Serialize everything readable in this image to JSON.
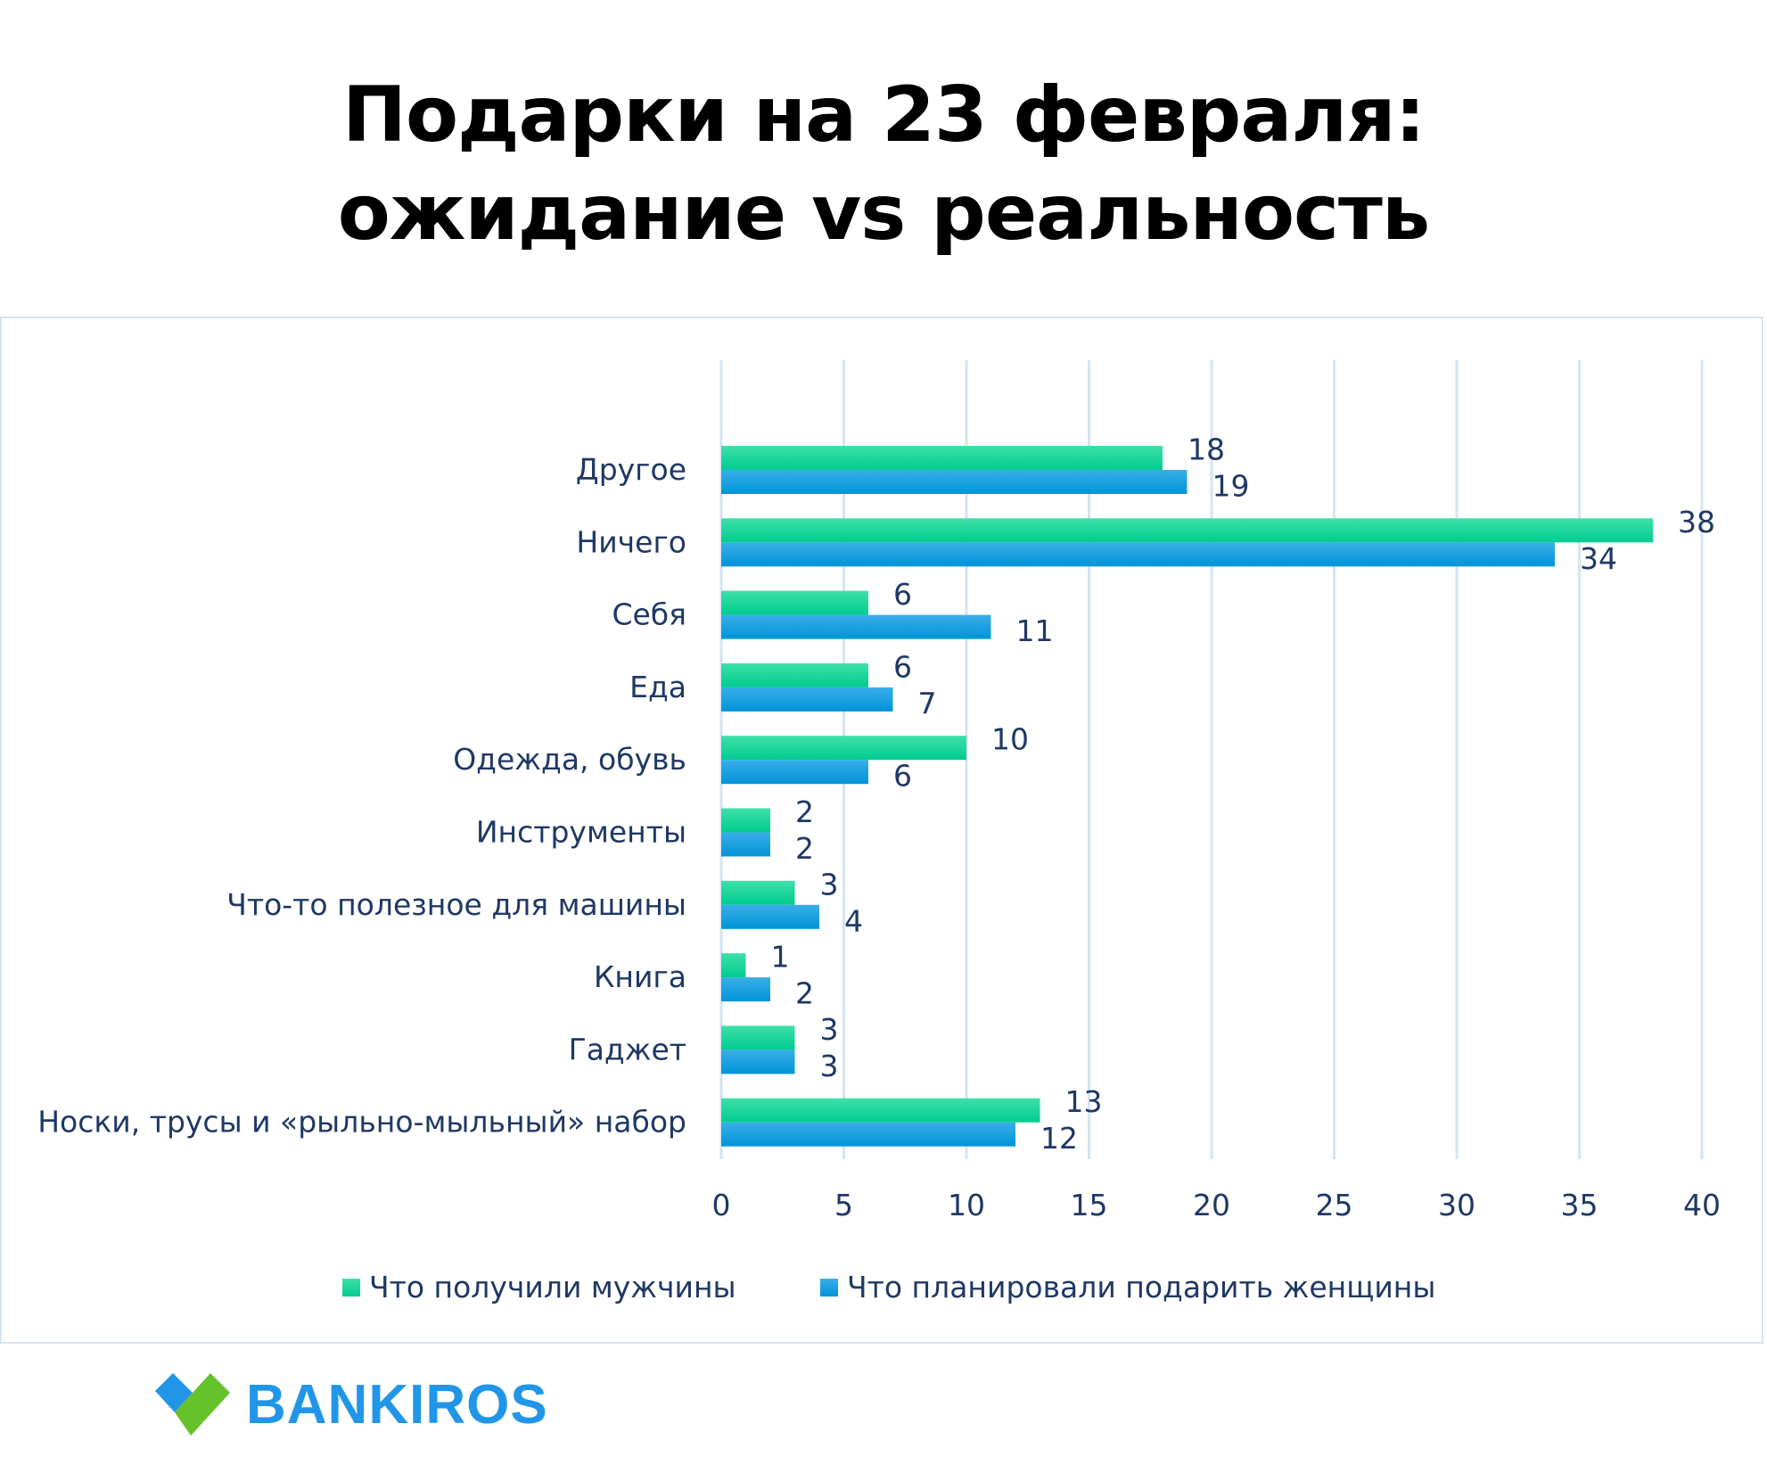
{
  "title_line1": "Подарки на 23 февраля:",
  "title_line2": "ожидание vs реальность",
  "colors": {
    "men": "#17d39a",
    "women": "#1aa3e6",
    "text": "#1f3864",
    "grid": "#d6e4f0",
    "brand_blue": "#2196e8",
    "brand_green": "#66c22a"
  },
  "chart_data": {
    "type": "bar",
    "orientation": "horizontal",
    "title": "Подарки на 23 февраля: ожидание vs реальность",
    "categories": [
      "Другое",
      "Ничего",
      "Себя",
      "Еда",
      "Одежда, обувь",
      "Инструменты",
      "Что-то полезное для машины",
      "Книга",
      "Гаджет",
      "Носки, трусы и «рыльно-мыльный» набор"
    ],
    "series": [
      {
        "name": "Что получили мужчины",
        "values": [
          18,
          38,
          6,
          6,
          10,
          2,
          3,
          1,
          3,
          13
        ]
      },
      {
        "name": "Что планировали подарить женщины",
        "values": [
          19,
          34,
          11,
          7,
          6,
          2,
          4,
          2,
          3,
          12
        ]
      }
    ],
    "xlim": [
      0,
      40
    ],
    "xticks": [
      "0",
      "5",
      "10",
      "15",
      "20",
      "25",
      "30",
      "35",
      "40"
    ],
    "grid": true,
    "legend_position": "bottom"
  },
  "logo": {
    "text": "BANKIROS"
  }
}
